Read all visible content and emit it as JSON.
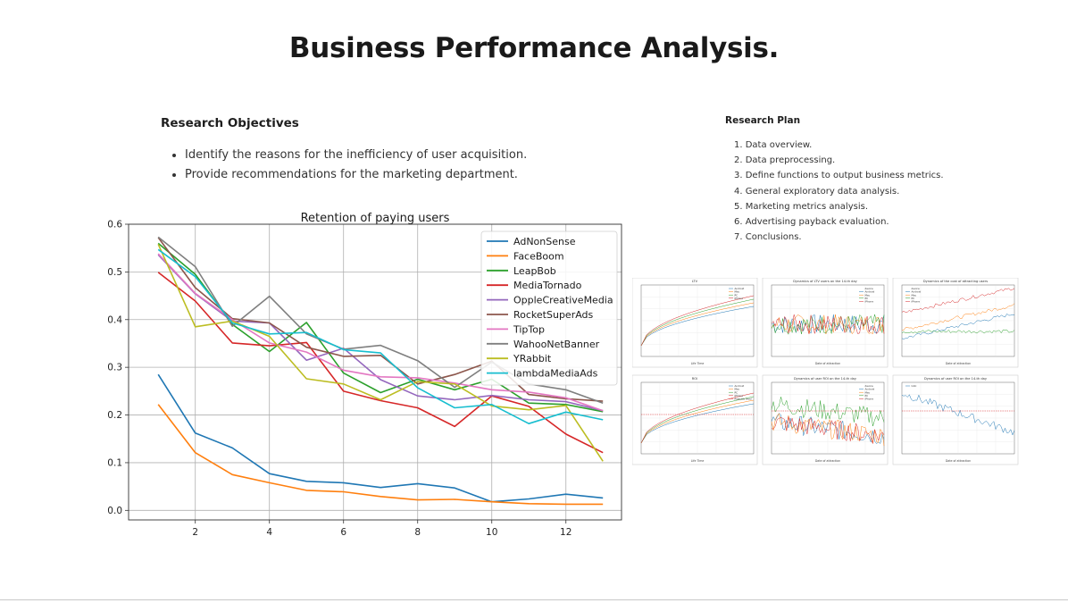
{
  "slide": {
    "title": "Business Performance Analysis."
  },
  "objectives": {
    "heading": "Research Objectives",
    "items": [
      "Identify the reasons for the inefficiency of user acquisition.",
      "Provide recommendations for the marketing department."
    ]
  },
  "plan": {
    "heading": "Research Plan",
    "items": [
      "1. Data overview.",
      "2. Data preprocessing.",
      "3. Define functions to output business metrics.",
      "4. General exploratory data analysis.",
      "5. Marketing metrics analysis.",
      "6. Advertising payback evaluation.",
      "7. Conclusions."
    ]
  },
  "chart_data": {
    "type": "line",
    "title": "Retention of paying users",
    "xlabel": "",
    "ylabel": "",
    "x": [
      1,
      2,
      3,
      4,
      5,
      6,
      7,
      8,
      9,
      10,
      11,
      12,
      13
    ],
    "xlim": [
      0.2,
      13.5
    ],
    "ylim": [
      -0.02,
      0.6
    ],
    "xticks": [
      2,
      4,
      6,
      8,
      10,
      12
    ],
    "yticks": [
      0.0,
      0.1,
      0.2,
      0.3,
      0.4,
      0.5,
      0.6
    ],
    "xtick_labels": [
      "2",
      "4",
      "6",
      "8",
      "10",
      "12"
    ],
    "ytick_labels": [
      "0.0",
      "0.1",
      "0.2",
      "0.3",
      "0.4",
      "0.5",
      "0.6"
    ],
    "grid": true,
    "legend": "top-right",
    "series": [
      {
        "name": "AdNonSense",
        "color": "#1f77b4",
        "values": [
          0.285,
          0.162,
          0.131,
          0.077,
          0.061,
          0.058,
          0.048,
          0.056,
          0.047,
          0.018,
          0.024,
          0.034,
          0.026
        ]
      },
      {
        "name": "FaceBoom",
        "color": "#ff7f0e",
        "values": [
          0.222,
          0.121,
          0.075,
          0.058,
          0.042,
          0.039,
          0.029,
          0.022,
          0.023,
          0.018,
          0.014,
          0.013,
          0.013
        ]
      },
      {
        "name": "LeapBob",
        "color": "#2ca02c",
        "values": [
          0.56,
          0.495,
          0.39,
          0.333,
          0.394,
          0.288,
          0.247,
          0.275,
          0.253,
          0.275,
          0.225,
          0.222,
          0.207
        ]
      },
      {
        "name": "MediaTornado",
        "color": "#d62728",
        "values": [
          0.499,
          0.439,
          0.351,
          0.345,
          0.352,
          0.25,
          0.23,
          0.215,
          0.176,
          0.24,
          0.218,
          0.16,
          0.121
        ]
      },
      {
        "name": "OppleCreativeMedia",
        "color": "#9467bd",
        "values": [
          0.536,
          0.454,
          0.397,
          0.393,
          0.315,
          0.34,
          0.274,
          0.24,
          0.232,
          0.241,
          0.232,
          0.228,
          0.209
        ]
      },
      {
        "name": "RocketSuperAds",
        "color": "#8c564b",
        "values": [
          0.572,
          0.467,
          0.402,
          0.393,
          0.342,
          0.323,
          0.325,
          0.265,
          0.285,
          0.313,
          0.243,
          0.234,
          0.229
        ]
      },
      {
        "name": "TipTop",
        "color": "#e377c2",
        "values": [
          0.538,
          0.455,
          0.4,
          0.351,
          0.332,
          0.294,
          0.28,
          0.278,
          0.267,
          0.253,
          0.248,
          0.236,
          0.209
        ]
      },
      {
        "name": "WahooNetBanner",
        "color": "#7f7f7f",
        "values": [
          0.573,
          0.511,
          0.386,
          0.449,
          0.37,
          0.338,
          0.346,
          0.314,
          0.258,
          0.311,
          0.265,
          0.253,
          0.225
        ]
      },
      {
        "name": "YRabbit",
        "color": "#bcbd22",
        "values": [
          0.558,
          0.385,
          0.397,
          0.365,
          0.276,
          0.265,
          0.232,
          0.27,
          0.265,
          0.219,
          0.211,
          0.22,
          0.103
        ]
      },
      {
        "name": "lambdaMediaAds",
        "color": "#17becf",
        "values": [
          0.547,
          0.49,
          0.393,
          0.37,
          0.373,
          0.337,
          0.33,
          0.257,
          0.215,
          0.222,
          0.182,
          0.206,
          0.19
        ]
      }
    ]
  },
  "thumbnails": {
    "panels": [
      {
        "title": "LTV",
        "xlabel": "Life Time",
        "legend": [
          "Android",
          "Mac",
          "PC",
          "iPhone"
        ]
      },
      {
        "title": "Dynamics of LTV users on the 14-th day",
        "xlabel": "Date of attraction",
        "legend": [
          "device",
          "Android",
          "Mac",
          "PC",
          "iPhone"
        ]
      },
      {
        "title": "Dynamics of the cost of attracting users",
        "xlabel": "Date of attraction",
        "legend": [
          "device",
          "Android",
          "Mac",
          "PC",
          "iPhone"
        ]
      },
      {
        "title": "ROI",
        "xlabel": "Life Time",
        "legend": [
          "Android",
          "Mac",
          "PC",
          "iPhone",
          "Payback level"
        ]
      },
      {
        "title": "Dynamics of user ROI on the 14-th day",
        "xlabel": "Date of attraction",
        "legend": [
          "device",
          "Android",
          "Mac",
          "PC",
          "iPhone"
        ]
      },
      {
        "title": "Dynamics of user ROI on the 14-th day",
        "xlabel": "Date of attraction",
        "legend": [
          "CAC"
        ]
      }
    ]
  }
}
